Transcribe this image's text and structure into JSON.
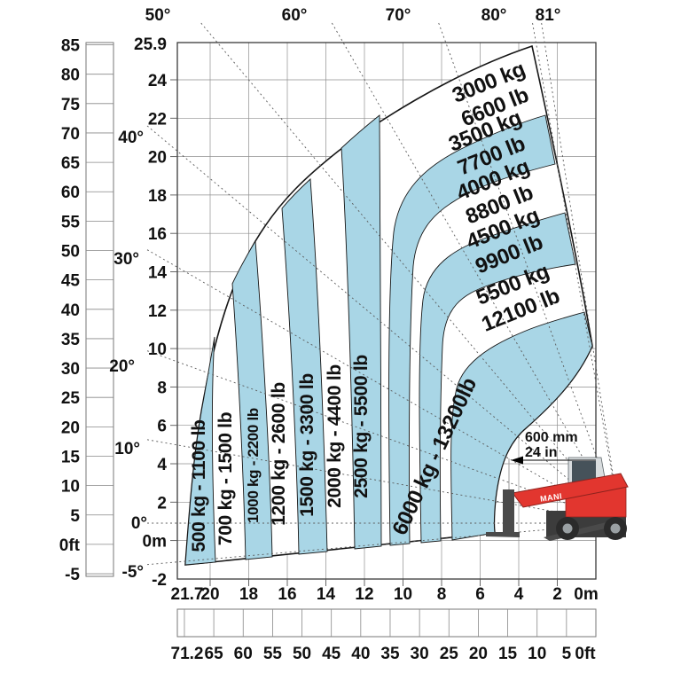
{
  "chart_data": {
    "type": "area",
    "description": "Telehandler load capacity chart with boom angle lines and load zones",
    "y_axis_ft": {
      "labels": [
        "85",
        "80",
        "75",
        "70",
        "65",
        "60",
        "55",
        "50",
        "45",
        "40",
        "35",
        "30",
        "25",
        "20",
        "15",
        "10",
        "5",
        "0ft",
        "-5"
      ],
      "values": [
        85,
        80,
        75,
        70,
        65,
        60,
        55,
        50,
        45,
        40,
        35,
        30,
        25,
        20,
        15,
        10,
        5,
        0,
        -5
      ]
    },
    "y_axis_m": {
      "labels": [
        "25.9",
        "24",
        "22",
        "20",
        "18",
        "16",
        "14",
        "12",
        "10",
        "8",
        "6",
        "4",
        "2",
        "0m",
        "-2"
      ],
      "values": [
        25.9,
        24,
        22,
        20,
        18,
        16,
        14,
        12,
        10,
        8,
        6,
        4,
        2,
        0,
        -2
      ]
    },
    "x_axis_m": {
      "labels": [
        "21.7",
        "20",
        "18",
        "16",
        "14",
        "12",
        "10",
        "8",
        "6",
        "4",
        "2",
        "0m"
      ],
      "values": [
        21.7,
        20,
        18,
        16,
        14,
        12,
        10,
        8,
        6,
        4,
        2,
        0
      ]
    },
    "x_axis_ft": {
      "labels": [
        "71.2",
        "65",
        "60",
        "55",
        "50",
        "45",
        "40",
        "35",
        "30",
        "25",
        "20",
        "15",
        "10",
        "5",
        "0ft"
      ],
      "values": [
        71.2,
        65,
        60,
        55,
        50,
        45,
        40,
        35,
        30,
        25,
        20,
        15,
        10,
        5,
        0
      ]
    },
    "boom_angles": {
      "labels": [
        "-5°",
        "0°",
        "10°",
        "20°",
        "30°",
        "40°",
        "50°",
        "60°",
        "70°",
        "80°",
        "81°"
      ],
      "values": [
        -5,
        0,
        10,
        20,
        30,
        40,
        50,
        60,
        70,
        80,
        81
      ]
    },
    "zones": [
      {
        "kg": 500,
        "lb": 1100,
        "label": "500 kg - 1100 lb",
        "color": "blue"
      },
      {
        "kg": 700,
        "lb": 1500,
        "label": "700 kg - 1500 lb",
        "color": "white"
      },
      {
        "kg": 1000,
        "lb": 2200,
        "label": "1000 kg - 2200 lb",
        "color": "blue"
      },
      {
        "kg": 1200,
        "lb": 2600,
        "label": "1200 kg - 2600 lb",
        "color": "white"
      },
      {
        "kg": 1500,
        "lb": 3300,
        "label": "1500 kg - 3300 lb",
        "color": "blue"
      },
      {
        "kg": 2000,
        "lb": 4400,
        "label": "2000 kg - 4400 lb",
        "color": "white"
      },
      {
        "kg": 2500,
        "lb": 5500,
        "label": "2500 kg - 5500 lb",
        "color": "blue"
      },
      {
        "kg": 3000,
        "lb": 6600,
        "label_kg": "3000 kg",
        "label_lb": "6600 lb",
        "color": "white"
      },
      {
        "kg": 3500,
        "lb": 7700,
        "label_kg": "3500 kg",
        "label_lb": "7700 lb",
        "color": "blue"
      },
      {
        "kg": 4000,
        "lb": 8800,
        "label_kg": "4000 kg",
        "label_lb": "8800 lb",
        "color": "white"
      },
      {
        "kg": 4500,
        "lb": 9900,
        "label_kg": "4500 kg",
        "label_lb": "9900 lb",
        "color": "blue"
      },
      {
        "kg": 5500,
        "lb": 12100,
        "label_kg": "5500 kg",
        "label_lb": "12100 lb",
        "color": "white"
      },
      {
        "kg": 6000,
        "lb": 13200,
        "label": "6000 kg - 13200lb",
        "color": "blue"
      }
    ],
    "annotation": {
      "line1": "600 mm",
      "line2": "24 in"
    },
    "machine_label": "MANI",
    "colors": {
      "zone_blue": "#a9d6e6",
      "machine_red": "#e2362f",
      "grid": "#8f8f8f"
    }
  }
}
